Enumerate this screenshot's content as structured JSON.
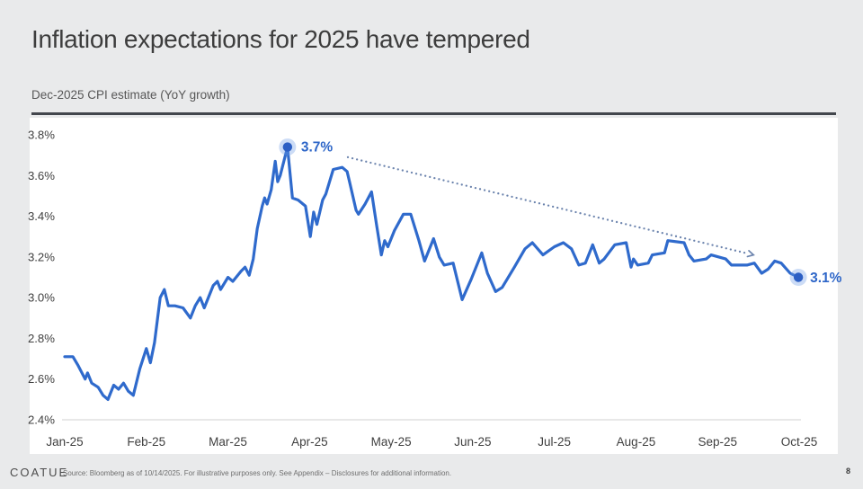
{
  "header": {
    "title": "Inflation expectations for 2025 have tempered",
    "subtitle": "Dec-2025 CPI estimate (YoY growth)"
  },
  "footer": {
    "logo": "COATUE",
    "source": "Source: Bloomberg as of 10/14/2025. For illustrative purposes only. See Appendix – Disclosures for additional information.",
    "page_number": "8"
  },
  "colors": {
    "background": "#e9eaeb",
    "panel": "#ffffff",
    "line": "#2f6acc",
    "marker": "#2c5fc4",
    "marker_halo": "rgba(110,155,230,0.35)",
    "annotation_text": "#2e66c8",
    "trend_dots": "#6b83ad",
    "axis_text": "#3f3f3f",
    "rule": "#43474d",
    "baseline": "#d9d9d9"
  },
  "chart_data": {
    "type": "line",
    "title": "Dec-2025 CPI estimate (YoY growth)",
    "x_tick_labels": [
      "Jan-25",
      "Feb-25",
      "Mar-25",
      "Apr-25",
      "May-25",
      "Jun-25",
      "Jul-25",
      "Aug-25",
      "Sep-25",
      "Oct-25"
    ],
    "y_tick_labels": [
      "3.8%",
      "3.6%",
      "3.4%",
      "3.2%",
      "3.0%",
      "2.8%",
      "2.6%",
      "2.4%"
    ],
    "ylim": [
      2.4,
      3.8
    ],
    "y_step": 0.2,
    "grid": "none",
    "legend": "none",
    "series": [
      {
        "name": "Dec-2025 CPI estimate (YoY growth)",
        "x_unit": "months since Jan-25 tick",
        "y_unit": "percent",
        "points": [
          [
            0,
            2.71
          ],
          [
            0.1,
            2.71
          ],
          [
            0.16,
            2.67
          ],
          [
            0.25,
            2.6
          ],
          [
            0.28,
            2.63
          ],
          [
            0.33,
            2.58
          ],
          [
            0.41,
            2.56
          ],
          [
            0.47,
            2.52
          ],
          [
            0.53,
            2.5
          ],
          [
            0.6,
            2.57
          ],
          [
            0.66,
            2.55
          ],
          [
            0.72,
            2.58
          ],
          [
            0.78,
            2.54
          ],
          [
            0.84,
            2.52
          ],
          [
            0.92,
            2.65
          ],
          [
            1,
            2.75
          ],
          [
            1.05,
            2.68
          ],
          [
            1.1,
            2.78
          ],
          [
            1.17,
            3
          ],
          [
            1.22,
            3.04
          ],
          [
            1.27,
            2.96
          ],
          [
            1.35,
            2.96
          ],
          [
            1.45,
            2.95
          ],
          [
            1.54,
            2.9
          ],
          [
            1.6,
            2.96
          ],
          [
            1.66,
            3
          ],
          [
            1.71,
            2.95
          ],
          [
            1.82,
            3.06
          ],
          [
            1.87,
            3.08
          ],
          [
            1.91,
            3.04
          ],
          [
            2,
            3.1
          ],
          [
            2.06,
            3.08
          ],
          [
            2.16,
            3.13
          ],
          [
            2.21,
            3.15
          ],
          [
            2.26,
            3.11
          ],
          [
            2.31,
            3.19
          ],
          [
            2.36,
            3.34
          ],
          [
            2.42,
            3.45
          ],
          [
            2.45,
            3.49
          ],
          [
            2.48,
            3.46
          ],
          [
            2.53,
            3.53
          ],
          [
            2.58,
            3.67
          ],
          [
            2.61,
            3.57
          ],
          [
            2.64,
            3.6
          ],
          [
            2.73,
            3.74
          ],
          [
            2.79,
            3.49
          ],
          [
            2.86,
            3.48
          ],
          [
            2.95,
            3.45
          ],
          [
            3.01,
            3.3
          ],
          [
            3.05,
            3.42
          ],
          [
            3.09,
            3.36
          ],
          [
            3.16,
            3.48
          ],
          [
            3.2,
            3.51
          ],
          [
            3.29,
            3.63
          ],
          [
            3.4,
            3.64
          ],
          [
            3.46,
            3.62
          ],
          [
            3.49,
            3.57
          ],
          [
            3.57,
            3.43
          ],
          [
            3.6,
            3.41
          ],
          [
            3.68,
            3.46
          ],
          [
            3.76,
            3.52
          ],
          [
            3.82,
            3.36
          ],
          [
            3.88,
            3.21
          ],
          [
            3.92,
            3.28
          ],
          [
            3.96,
            3.25
          ],
          [
            4.04,
            3.33
          ],
          [
            4.15,
            3.41
          ],
          [
            4.24,
            3.41
          ],
          [
            4.34,
            3.28
          ],
          [
            4.41,
            3.18
          ],
          [
            4.52,
            3.29
          ],
          [
            4.59,
            3.2
          ],
          [
            4.65,
            3.16
          ],
          [
            4.76,
            3.17
          ],
          [
            4.87,
            2.99
          ],
          [
            4.98,
            3.09
          ],
          [
            5.11,
            3.22
          ],
          [
            5.18,
            3.12
          ],
          [
            5.28,
            3.03
          ],
          [
            5.36,
            3.05
          ],
          [
            5.51,
            3.15
          ],
          [
            5.64,
            3.24
          ],
          [
            5.73,
            3.27
          ],
          [
            5.86,
            3.21
          ],
          [
            6,
            3.25
          ],
          [
            6.11,
            3.27
          ],
          [
            6.21,
            3.24
          ],
          [
            6.3,
            3.16
          ],
          [
            6.38,
            3.17
          ],
          [
            6.47,
            3.26
          ],
          [
            6.55,
            3.17
          ],
          [
            6.61,
            3.19
          ],
          [
            6.74,
            3.26
          ],
          [
            6.88,
            3.27
          ],
          [
            6.94,
            3.15
          ],
          [
            6.97,
            3.19
          ],
          [
            7.02,
            3.16
          ],
          [
            7.15,
            3.17
          ],
          [
            7.2,
            3.21
          ],
          [
            7.35,
            3.22
          ],
          [
            7.39,
            3.28
          ],
          [
            7.59,
            3.27
          ],
          [
            7.65,
            3.21
          ],
          [
            7.71,
            3.18
          ],
          [
            7.86,
            3.19
          ],
          [
            7.92,
            3.21
          ],
          [
            8.1,
            3.19
          ],
          [
            8.17,
            3.16
          ],
          [
            8.36,
            3.16
          ],
          [
            8.45,
            3.17
          ],
          [
            8.54,
            3.12
          ],
          [
            8.62,
            3.14
          ],
          [
            8.7,
            3.18
          ],
          [
            8.78,
            3.17
          ],
          [
            8.89,
            3.12
          ],
          [
            8.99,
            3.1
          ]
        ]
      }
    ],
    "annotations": {
      "peak": {
        "x_month": 2.73,
        "value": 3.74,
        "label": "3.7%"
      },
      "last": {
        "x_month": 8.99,
        "value": 3.1,
        "label": "3.1%"
      },
      "trend_arrow": {
        "from": [
          3.47,
          3.69
        ],
        "to": [
          8.44,
          3.21
        ],
        "style": "dotted-with-arrowhead"
      }
    }
  }
}
